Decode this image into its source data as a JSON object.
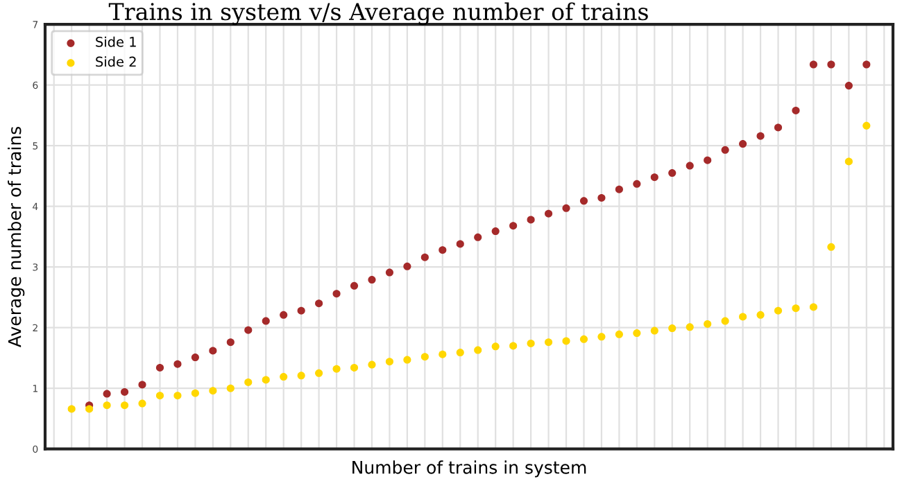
{
  "chart_data": {
    "type": "scatter",
    "title": "Trains in system v/s Average number of trains",
    "xlabel": "Number of trains in system",
    "ylabel": "Average number of trains",
    "categories": [
      null,
      null,
      null,
      null,
      null,
      null,
      null,
      null,
      null,
      null,
      null,
      null,
      null,
      null,
      null,
      null,
      null,
      null,
      null,
      null,
      null,
      null,
      null,
      null,
      null,
      null,
      null,
      null,
      null,
      null,
      null,
      null,
      null,
      null,
      null,
      null,
      null,
      null,
      null,
      null,
      null,
      null,
      null,
      null,
      null,
      null,
      null,
      null
    ],
    "series": [
      {
        "name": "Side 1",
        "color": "#a52a2a",
        "values": [
          null,
          null,
          0.72,
          0.91,
          0.94,
          1.06,
          1.34,
          1.4,
          1.51,
          1.62,
          1.76,
          1.96,
          2.11,
          2.21,
          2.28,
          2.4,
          2.56,
          2.69,
          2.79,
          2.91,
          3.01,
          3.16,
          3.28,
          3.38,
          3.49,
          3.59,
          3.68,
          3.78,
          3.88,
          3.97,
          4.09,
          4.14,
          4.28,
          4.37,
          4.48,
          4.55,
          4.67,
          4.76,
          4.93,
          5.03,
          5.16,
          5.3,
          5.58,
          6.34,
          6.34,
          5.99,
          6.34,
          null
        ]
      },
      {
        "name": "Side 2",
        "color": "#ffd700",
        "values": [
          null,
          0.66,
          0.66,
          0.72,
          0.72,
          0.75,
          0.88,
          0.88,
          0.92,
          0.96,
          1.0,
          1.1,
          1.14,
          1.19,
          1.21,
          1.25,
          1.32,
          1.34,
          1.39,
          1.44,
          1.47,
          1.52,
          1.56,
          1.59,
          1.63,
          1.69,
          1.7,
          1.74,
          1.76,
          1.78,
          1.81,
          1.85,
          1.89,
          1.91,
          1.95,
          1.99,
          2.01,
          2.06,
          2.11,
          2.18,
          2.21,
          2.28,
          2.32,
          2.34,
          3.33,
          4.74,
          5.33,
          null
        ]
      }
    ],
    "ylim": [
      0,
      7
    ],
    "yticks": [
      0,
      1,
      2,
      3,
      4,
      5,
      6,
      7
    ],
    "grid": true,
    "legend": "top left",
    "marker": "circle",
    "tick_labels": "y"
  }
}
